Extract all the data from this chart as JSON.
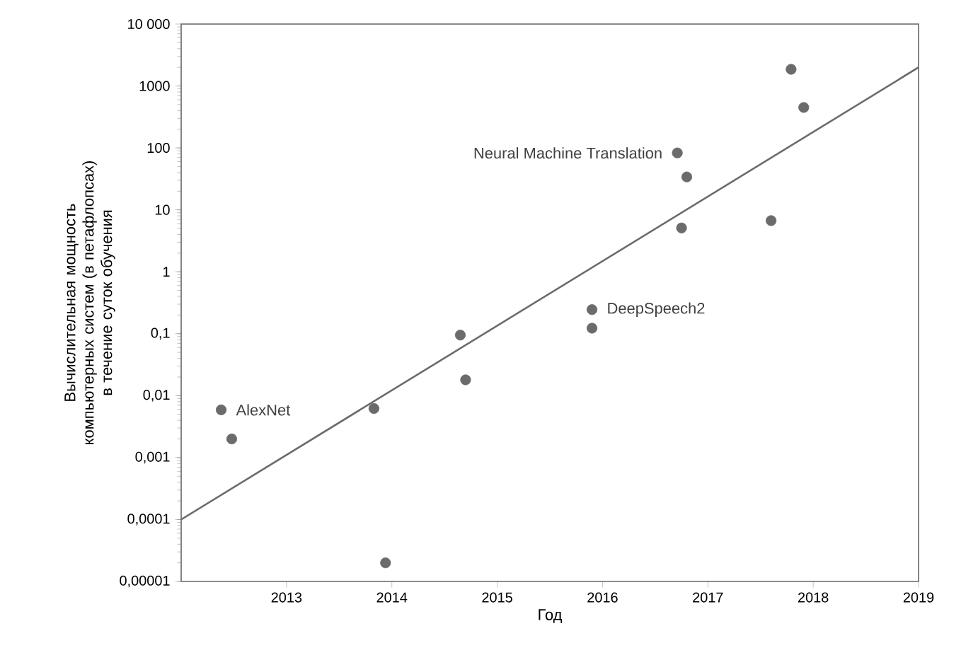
{
  "chart_data": {
    "type": "scatter",
    "xlabel": "Год",
    "ylabel": "Вычислительная мощность компьютерных систем (в петафлопсах) в течение суток обучения",
    "xlim": [
      2012,
      2019
    ],
    "xticks": [
      2013,
      2014,
      2015,
      2016,
      2017,
      2018,
      2019
    ],
    "ylim": [
      1e-05,
      10000
    ],
    "yticks": [
      {
        "value": 1e-05,
        "label": "0,00001"
      },
      {
        "value": 0.0001,
        "label": "0,0001"
      },
      {
        "value": 0.001,
        "label": "0,001"
      },
      {
        "value": 0.01,
        "label": "0,01"
      },
      {
        "value": 0.1,
        "label": "0,1"
      },
      1,
      10,
      100,
      1000,
      {
        "value": 10000,
        "label": "10 000"
      }
    ],
    "log": "y",
    "marker": "circle",
    "series": [
      {
        "color": "#6b6b6b",
        "x": [
          2012.38,
          2012.48,
          2013.83,
          2013.94,
          2014.65,
          2014.7,
          2015.9,
          2015.9,
          2016.71,
          2016.8,
          2016.75,
          2017.6,
          2017.79,
          2017.91
        ],
        "values": [
          0.0059,
          0.002,
          0.0062,
          2e-05,
          0.095,
          0.018,
          0.245,
          0.123,
          83,
          34,
          5.1,
          6.7,
          1860,
          450
        ]
      },
      {
        "type": "line",
        "marker": "none",
        "color": "#6b6b6b",
        "x": [
          2012,
          2019
        ],
        "values": [
          0.0001,
          2000
        ]
      }
    ],
    "annotations": [
      {
        "text": "AlexNet",
        "x": 2012.38,
        "y": 0.0059
      },
      {
        "text": "DeepSpeech2",
        "x": 2015.9,
        "y": 0.245
      },
      {
        "text": "Neural Machine Translation",
        "x": 2016.71,
        "y": 83
      }
    ]
  }
}
